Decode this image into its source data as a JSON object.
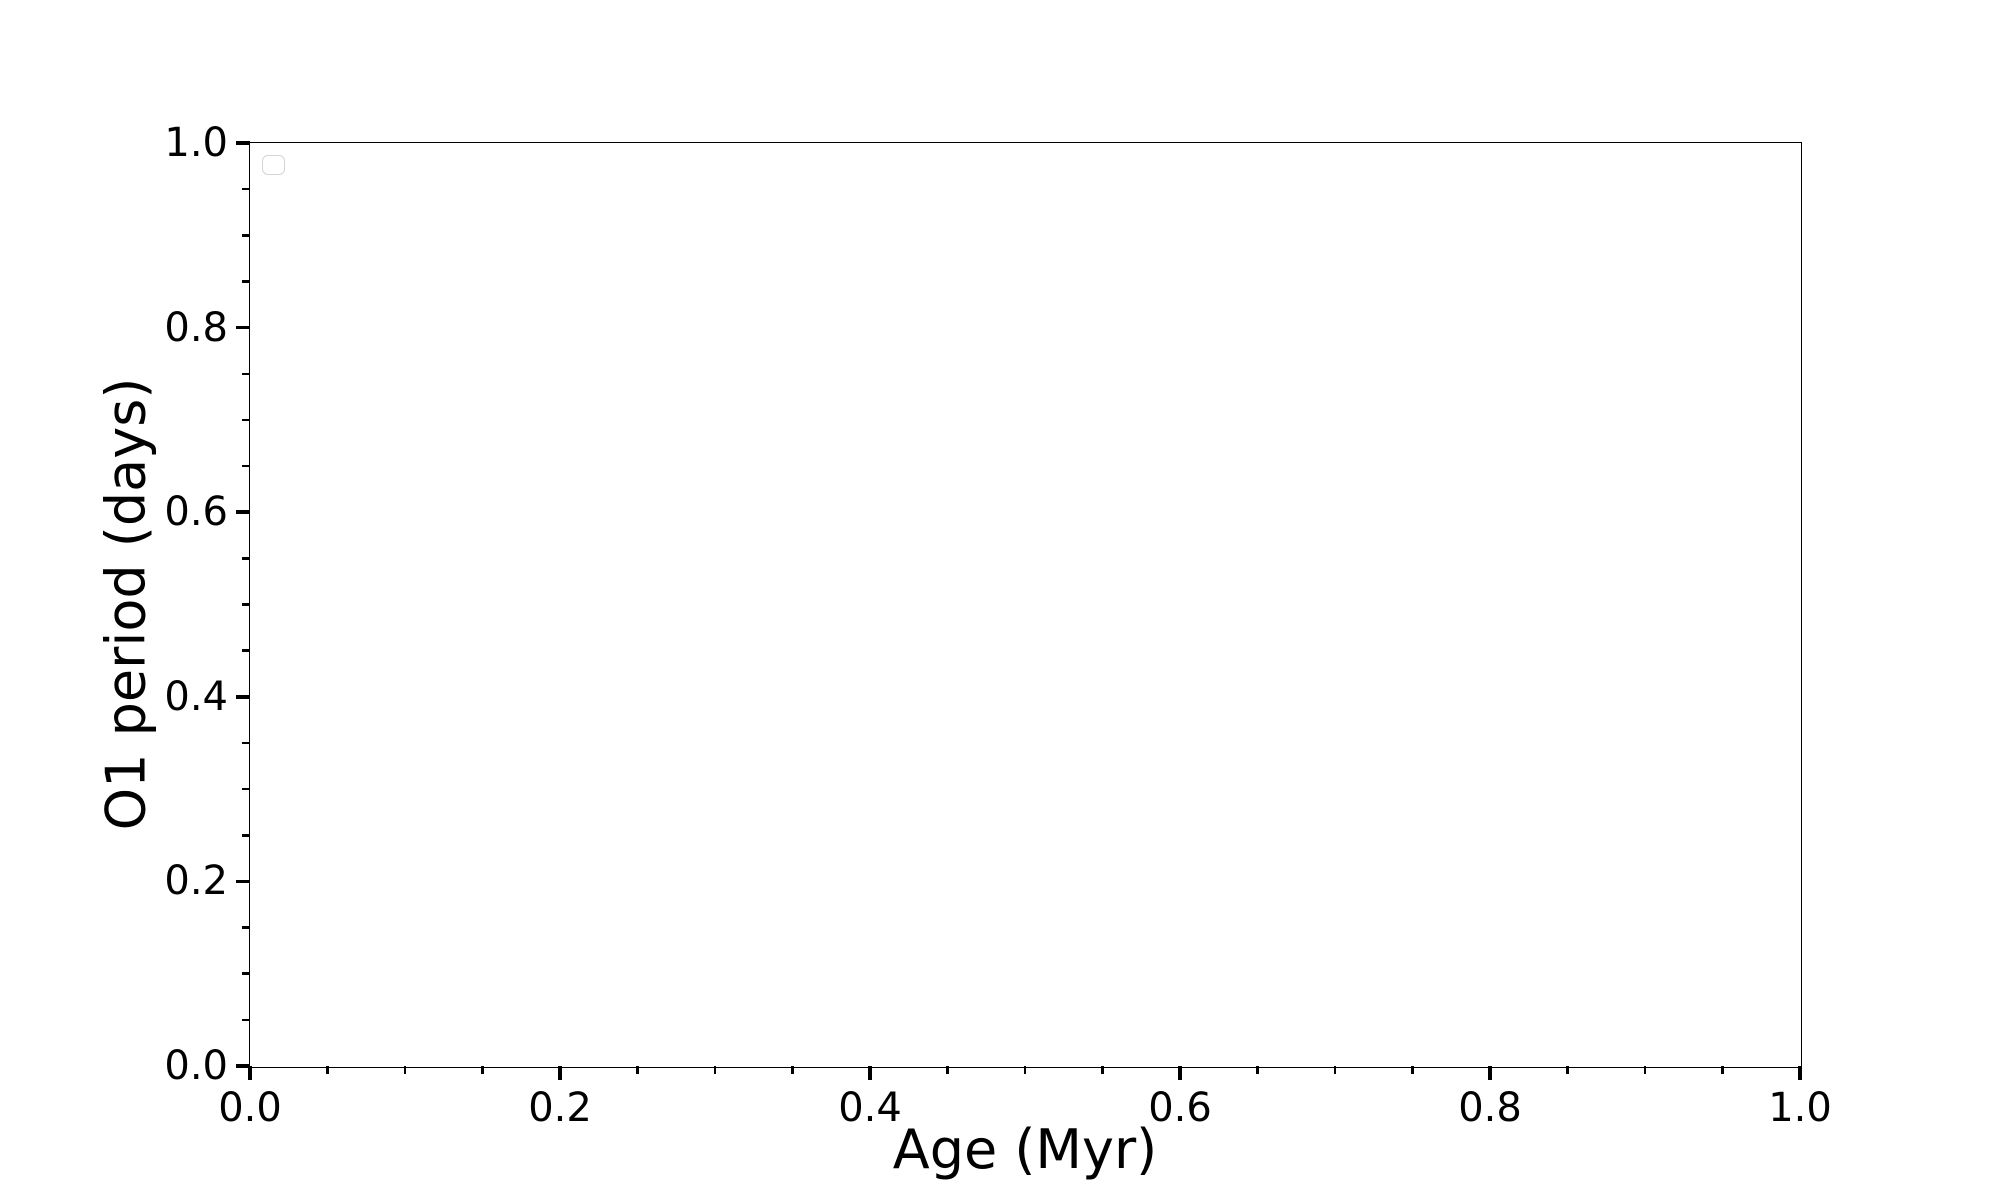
{
  "chart_data": {
    "type": "scatter",
    "series": [],
    "title": "",
    "xlabel": "Age (Myr)",
    "ylabel": "O1 period (days)",
    "xlim": [
      0.0,
      1.0
    ],
    "ylim": [
      0.0,
      1.0
    ],
    "x_tick_labels": [
      "0.0",
      "0.2",
      "0.4",
      "0.6",
      "0.8",
      "1.0"
    ],
    "y_tick_labels": [
      "0.0",
      "0.2",
      "0.4",
      "0.6",
      "0.8",
      "1.0"
    ],
    "minor_tick_step": 0.05,
    "grid": false,
    "legend": {
      "visible": true,
      "entries": [],
      "position": "upper-left"
    }
  },
  "colors": {
    "background": "#ffffff",
    "spine": "#000000",
    "tick": "#000000",
    "text": "#000000",
    "legend_border": "#d5d5d5"
  }
}
